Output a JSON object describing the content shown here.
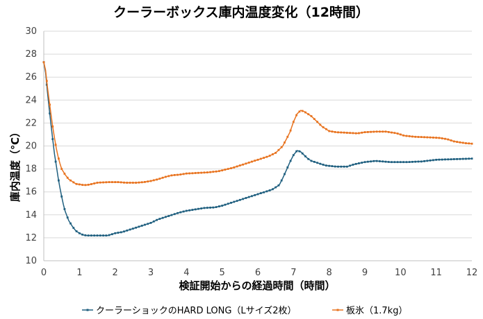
{
  "chart_data": {
    "type": "line",
    "title": "クーラーボックス庫内温度変化（12時間）",
    "xlabel": "検証開始からの経過時間（時間）",
    "ylabel": "庫内温度（℃）",
    "xlim": [
      0,
      12
    ],
    "ylim": [
      10,
      30
    ],
    "x_ticks": [
      0,
      1,
      2,
      3,
      4,
      5,
      6,
      7,
      8,
      9,
      10,
      11,
      12
    ],
    "y_ticks": [
      10,
      12,
      14,
      16,
      18,
      20,
      22,
      24,
      26,
      28,
      30
    ],
    "grid": "horizontal",
    "legend_position": "bottom",
    "series": [
      {
        "name": "クーラーショックのHARD LONG（Lサイズ2枚）",
        "color": "#1f5f7f",
        "marker": "square",
        "points": [
          [
            0,
            27.3
          ],
          [
            0.05,
            26.4
          ],
          [
            0.1,
            24.8
          ],
          [
            0.15,
            23.3
          ],
          [
            0.2,
            21.9
          ],
          [
            0.25,
            20.6
          ],
          [
            0.3,
            19.3
          ],
          [
            0.35,
            18.3
          ],
          [
            0.4,
            17.3
          ],
          [
            0.45,
            16.4
          ],
          [
            0.5,
            15.6
          ],
          [
            0.55,
            14.9
          ],
          [
            0.6,
            14.3
          ],
          [
            0.7,
            13.5
          ],
          [
            0.8,
            13.0
          ],
          [
            0.9,
            12.6
          ],
          [
            1.0,
            12.4
          ],
          [
            1.1,
            12.25
          ],
          [
            1.2,
            12.2
          ],
          [
            1.5,
            12.2
          ],
          [
            1.8,
            12.2
          ],
          [
            1.9,
            12.3
          ],
          [
            2.0,
            12.4
          ],
          [
            2.2,
            12.5
          ],
          [
            2.4,
            12.7
          ],
          [
            2.6,
            12.9
          ],
          [
            2.8,
            13.1
          ],
          [
            3.0,
            13.3
          ],
          [
            3.2,
            13.6
          ],
          [
            3.4,
            13.8
          ],
          [
            3.6,
            14.0
          ],
          [
            3.8,
            14.2
          ],
          [
            4.0,
            14.35
          ],
          [
            4.2,
            14.45
          ],
          [
            4.5,
            14.6
          ],
          [
            4.8,
            14.65
          ],
          [
            5.0,
            14.8
          ],
          [
            5.2,
            15.0
          ],
          [
            5.4,
            15.2
          ],
          [
            5.6,
            15.4
          ],
          [
            5.8,
            15.6
          ],
          [
            6.0,
            15.8
          ],
          [
            6.2,
            16.0
          ],
          [
            6.4,
            16.2
          ],
          [
            6.5,
            16.4
          ],
          [
            6.6,
            16.6
          ],
          [
            6.7,
            17.2
          ],
          [
            6.8,
            17.9
          ],
          [
            6.9,
            18.6
          ],
          [
            7.0,
            19.2
          ],
          [
            7.1,
            19.6
          ],
          [
            7.2,
            19.5
          ],
          [
            7.3,
            19.2
          ],
          [
            7.4,
            18.9
          ],
          [
            7.5,
            18.7
          ],
          [
            7.7,
            18.5
          ],
          [
            7.9,
            18.3
          ],
          [
            8.2,
            18.2
          ],
          [
            8.5,
            18.2
          ],
          [
            8.7,
            18.4
          ],
          [
            9.0,
            18.6
          ],
          [
            9.3,
            18.7
          ],
          [
            9.7,
            18.6
          ],
          [
            10.2,
            18.6
          ],
          [
            10.6,
            18.65
          ],
          [
            11.0,
            18.8
          ],
          [
            11.5,
            18.85
          ],
          [
            12.0,
            18.9
          ]
        ]
      },
      {
        "name": "板氷（1.7kg）",
        "color": "#e8731f",
        "marker": "square",
        "points": [
          [
            0,
            27.3
          ],
          [
            0.05,
            26.6
          ],
          [
            0.1,
            25.2
          ],
          [
            0.15,
            24.0
          ],
          [
            0.2,
            22.8
          ],
          [
            0.25,
            21.7
          ],
          [
            0.3,
            20.7
          ],
          [
            0.35,
            19.8
          ],
          [
            0.4,
            19.1
          ],
          [
            0.45,
            18.5
          ],
          [
            0.5,
            18.0
          ],
          [
            0.6,
            17.5
          ],
          [
            0.7,
            17.1
          ],
          [
            0.8,
            16.9
          ],
          [
            0.9,
            16.7
          ],
          [
            1.0,
            16.65
          ],
          [
            1.1,
            16.6
          ],
          [
            1.2,
            16.6
          ],
          [
            1.3,
            16.65
          ],
          [
            1.5,
            16.8
          ],
          [
            1.8,
            16.85
          ],
          [
            2.1,
            16.85
          ],
          [
            2.3,
            16.8
          ],
          [
            2.6,
            16.8
          ],
          [
            2.8,
            16.85
          ],
          [
            3.0,
            16.95
          ],
          [
            3.2,
            17.1
          ],
          [
            3.4,
            17.3
          ],
          [
            3.6,
            17.45
          ],
          [
            3.8,
            17.5
          ],
          [
            4.0,
            17.6
          ],
          [
            4.3,
            17.65
          ],
          [
            4.6,
            17.7
          ],
          [
            4.9,
            17.8
          ],
          [
            5.1,
            17.95
          ],
          [
            5.3,
            18.1
          ],
          [
            5.5,
            18.3
          ],
          [
            5.7,
            18.5
          ],
          [
            5.9,
            18.7
          ],
          [
            6.1,
            18.9
          ],
          [
            6.3,
            19.1
          ],
          [
            6.5,
            19.4
          ],
          [
            6.6,
            19.7
          ],
          [
            6.7,
            20.0
          ],
          [
            6.8,
            20.6
          ],
          [
            6.9,
            21.2
          ],
          [
            7.0,
            22.1
          ],
          [
            7.1,
            22.8
          ],
          [
            7.2,
            23.1
          ],
          [
            7.3,
            23.0
          ],
          [
            7.4,
            22.8
          ],
          [
            7.5,
            22.6
          ],
          [
            7.6,
            22.3
          ],
          [
            7.7,
            22.0
          ],
          [
            7.8,
            21.7
          ],
          [
            7.9,
            21.5
          ],
          [
            8.0,
            21.3
          ],
          [
            8.2,
            21.2
          ],
          [
            8.5,
            21.15
          ],
          [
            8.8,
            21.1
          ],
          [
            9.0,
            21.2
          ],
          [
            9.3,
            21.25
          ],
          [
            9.6,
            21.25
          ],
          [
            9.9,
            21.1
          ],
          [
            10.1,
            20.9
          ],
          [
            10.4,
            20.8
          ],
          [
            10.8,
            20.75
          ],
          [
            11.1,
            20.7
          ],
          [
            11.3,
            20.6
          ],
          [
            11.5,
            20.4
          ],
          [
            11.8,
            20.25
          ],
          [
            12.0,
            20.2
          ]
        ]
      }
    ]
  }
}
